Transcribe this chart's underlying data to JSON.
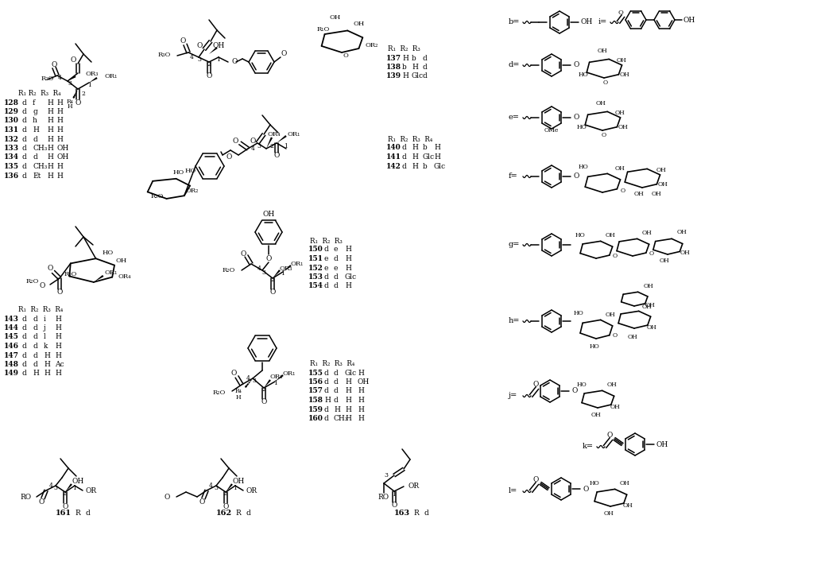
{
  "figsize": [
    10.28,
    7.07
  ],
  "dpi": 100,
  "bg": "#ffffff",
  "compounds_128_136": {
    "header": "R₁ R₂ R₃ R₄",
    "rows": [
      [
        "128",
        "d",
        "f",
        "H",
        "H"
      ],
      [
        "129",
        "d",
        "g",
        "H",
        "H"
      ],
      [
        "130",
        "d",
        "h",
        "H",
        "H"
      ],
      [
        "131",
        "d",
        "H",
        "H",
        "H"
      ],
      [
        "132",
        "d",
        "d",
        "H",
        "H"
      ],
      [
        "133",
        "d",
        "CH₃",
        "H",
        "OH"
      ],
      [
        "134",
        "d",
        "d",
        "H",
        "OH"
      ],
      [
        "135",
        "d",
        "CH₃",
        "H",
        "H"
      ],
      [
        "136",
        "d",
        "Et",
        "H",
        "H"
      ]
    ]
  },
  "compounds_137_139": {
    "header": "R₁ R₂ R₃",
    "rows": [
      [
        "137",
        "H",
        "b",
        "d"
      ],
      [
        "138",
        "b",
        "H",
        "d"
      ],
      [
        "139",
        "H",
        "Glc",
        "d"
      ]
    ]
  },
  "compounds_140_142": {
    "header": "R₁ R₂ R₃ R₄",
    "rows": [
      [
        "140",
        "d",
        "H",
        "b",
        "H"
      ],
      [
        "141",
        "d",
        "H",
        "Glc",
        "H"
      ],
      [
        "142",
        "d",
        "H",
        "b",
        "Glc"
      ]
    ]
  },
  "compounds_143_149": {
    "header": "R₁ R₂ R₃ R₄",
    "rows": [
      [
        "143",
        "d",
        "d",
        "i",
        "H"
      ],
      [
        "144",
        "d",
        "d",
        "j",
        "H"
      ],
      [
        "145",
        "d",
        "d",
        "l",
        "H"
      ],
      [
        "146",
        "d",
        "d",
        "k",
        "H"
      ],
      [
        "147",
        "d",
        "d",
        "H",
        "H"
      ],
      [
        "148",
        "d",
        "d",
        "H",
        "Ac"
      ],
      [
        "149",
        "d",
        "H",
        "H",
        "H"
      ]
    ]
  },
  "compounds_150_154": {
    "header": "R₁ R₂ R₃",
    "rows": [
      [
        "150",
        "d",
        "e",
        "H"
      ],
      [
        "151",
        "e",
        "d",
        "H"
      ],
      [
        "152",
        "e",
        "e",
        "H"
      ],
      [
        "153",
        "d",
        "d",
        "Glc"
      ],
      [
        "154",
        "d",
        "d",
        "H"
      ]
    ]
  },
  "compounds_155_160": {
    "header": "R₁ R₂ R₃ R₄",
    "rows": [
      [
        "155",
        "d",
        "d",
        "Glc",
        "H"
      ],
      [
        "156",
        "d",
        "d",
        "H",
        "OH"
      ],
      [
        "157",
        "d",
        "d",
        "H",
        "H"
      ],
      [
        "158",
        "H",
        "d",
        "H",
        "H"
      ],
      [
        "159",
        "d",
        "H",
        "H",
        "H"
      ],
      [
        "160",
        "d",
        "CH₃",
        "H",
        "H"
      ]
    ]
  },
  "compound_161": {
    "number": "161",
    "R": "d"
  },
  "compound_162": {
    "number": "162",
    "R": "d"
  },
  "compound_163": {
    "number": "163",
    "R": "d"
  }
}
